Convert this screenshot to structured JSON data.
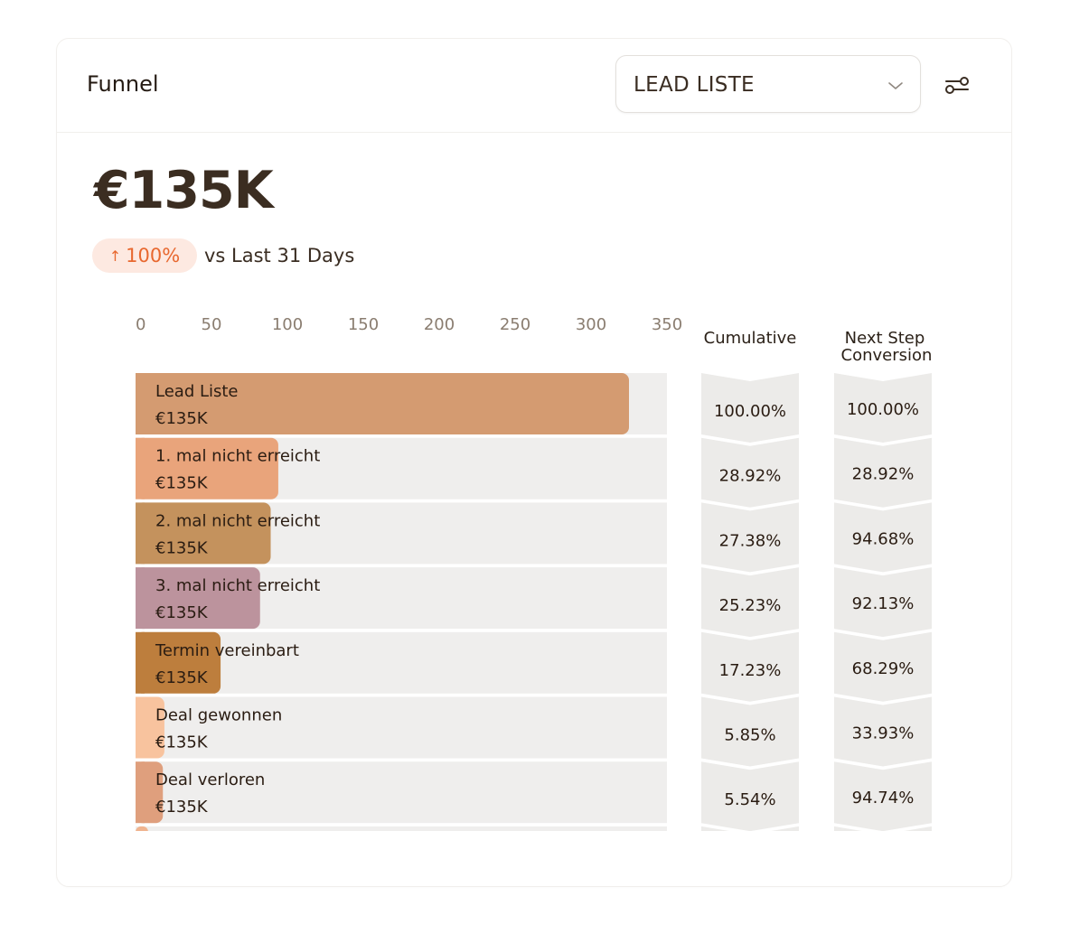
{
  "header": {
    "title": "Funnel",
    "select_value": "LEAD LISTE"
  },
  "summary": {
    "value": "€135K",
    "change": "100%",
    "change_arrow": "↑",
    "comparison": "vs Last 31 Days"
  },
  "icons": {
    "select": "chevron-down-icon",
    "filter": "filter-sliders-icon"
  },
  "colors": {
    "badge_bg": "#fde9e1",
    "badge_text": "#e8682f",
    "track": "#efeeed",
    "chevron": "#ecebe9"
  },
  "chart_data": {
    "type": "bar",
    "orientation": "horizontal",
    "xlim": [
      0,
      350
    ],
    "xticks": [
      0,
      50,
      100,
      150,
      200,
      250,
      300,
      350
    ],
    "cumulative_label": "Cumulative",
    "next_step_label": [
      "Next Step",
      "Conversion"
    ],
    "stages": [
      {
        "name": "Lead Liste",
        "amount": "€135K",
        "value": 325,
        "cumulative": "100.00%",
        "next_step": "100.00%",
        "color": "#d49b71"
      },
      {
        "name": "1. mal nicht erreicht",
        "amount": "€135K",
        "value": 94,
        "cumulative": "28.92%",
        "next_step": "28.92%",
        "color": "#e9a47b"
      },
      {
        "name": "2. mal nicht erreicht",
        "amount": "€135K",
        "value": 89,
        "cumulative": "27.38%",
        "next_step": "94.68%",
        "color": "#c4925d"
      },
      {
        "name": "3. mal nicht erreicht",
        "amount": "€135K",
        "value": 82,
        "cumulative": "25.23%",
        "next_step": "92.13%",
        "color": "#bc939d"
      },
      {
        "name": "Termin vereinbart",
        "amount": "€135K",
        "value": 56,
        "cumulative": "17.23%",
        "next_step": "68.29%",
        "color": "#bd7e3d"
      },
      {
        "name": "Deal gewonnen",
        "amount": "€135K",
        "value": 19,
        "cumulative": "5.85%",
        "next_step": "33.93%",
        "color": "#f8c39e"
      },
      {
        "name": "Deal verloren",
        "amount": "€135K",
        "value": 18,
        "cumulative": "5.54%",
        "next_step": "94.74%",
        "color": "#df9f7d"
      }
    ]
  }
}
